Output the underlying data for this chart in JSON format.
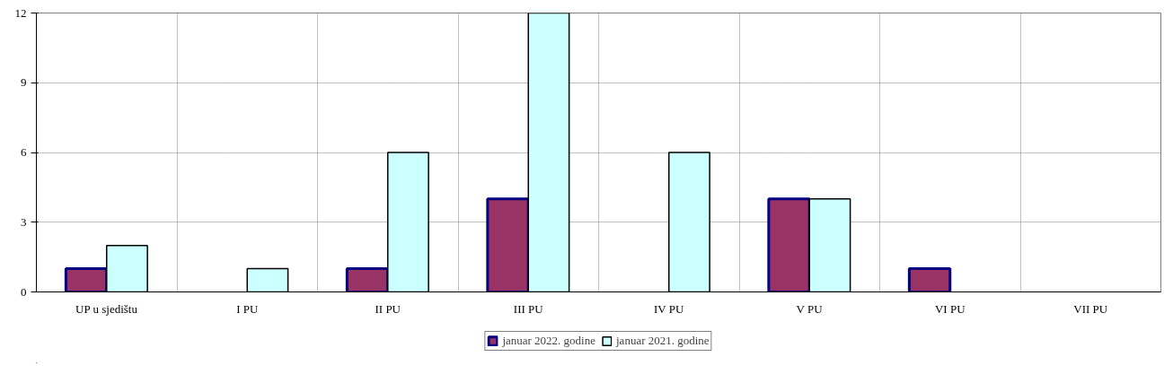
{
  "chart_data": {
    "type": "bar",
    "categories": [
      "UP u sjedištu",
      "I PU",
      "II PU",
      "III PU",
      "IV PU",
      "V PU",
      "VI PU",
      "VII PU"
    ],
    "series": [
      {
        "name": "januar 2022. godine",
        "color": "#993366",
        "values": [
          1,
          0,
          1,
          4,
          0,
          4,
          1,
          0
        ]
      },
      {
        "name": "januar 2021. godine",
        "color": "#ccffff",
        "values": [
          2,
          1,
          6,
          12,
          6,
          4,
          0,
          0
        ]
      }
    ],
    "ylim": [
      0,
      12
    ],
    "yticks": [
      0,
      3,
      6,
      9,
      12
    ],
    "grid": true,
    "legend": "bottom"
  }
}
